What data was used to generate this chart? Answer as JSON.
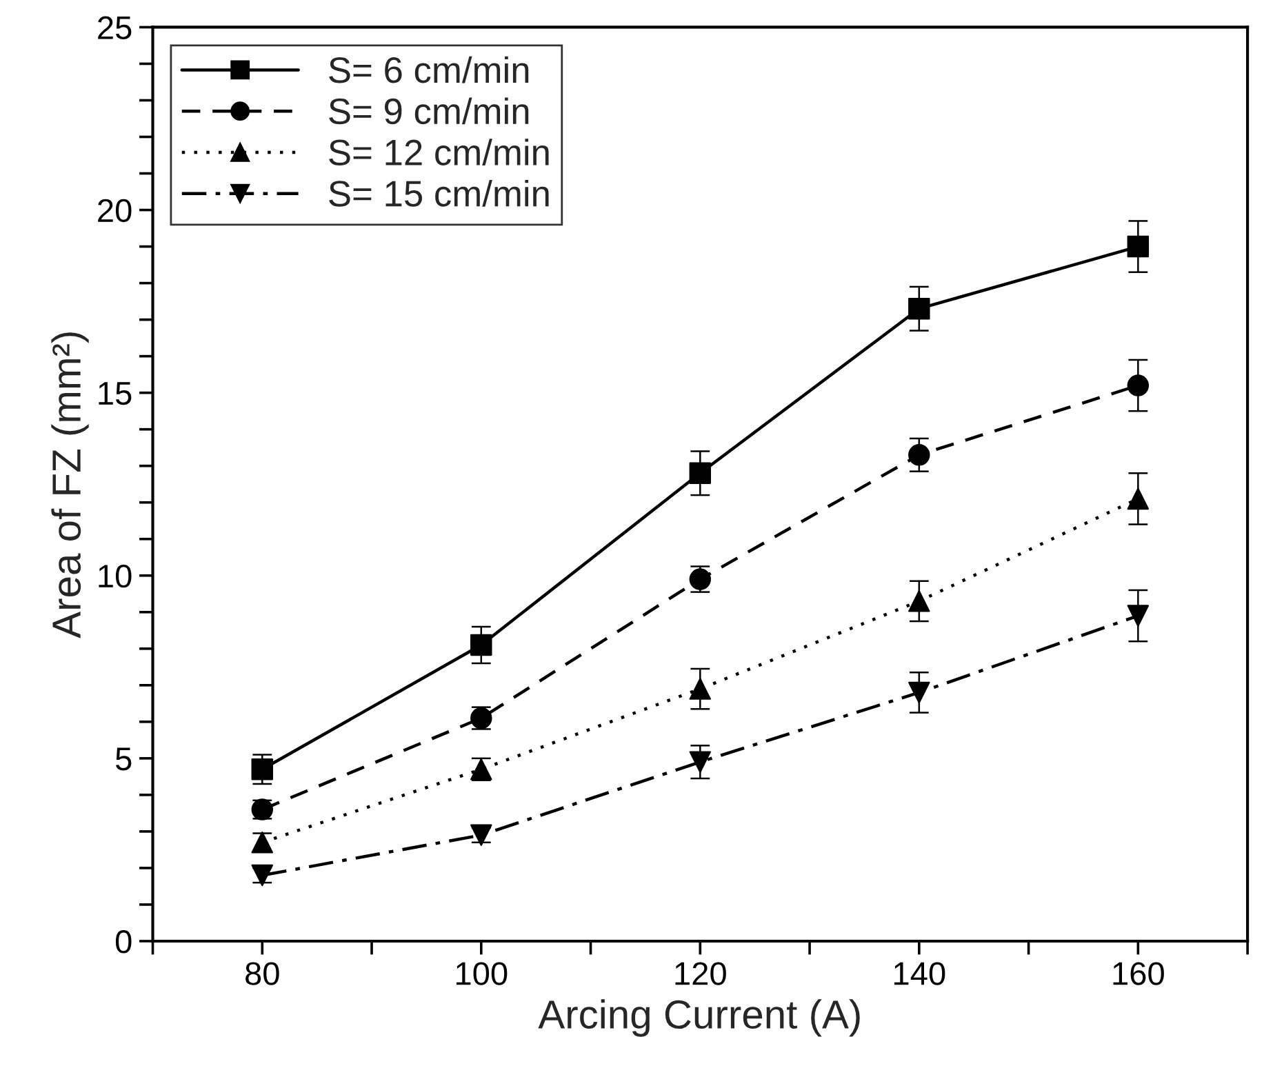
{
  "chart_data": {
    "type": "line",
    "xlabel": "Arcing Current (A)",
    "ylabel": "Area of FZ (mm²)",
    "x": [
      80,
      100,
      120,
      140,
      160
    ],
    "xlim": [
      70,
      170
    ],
    "xticks": [
      {
        "value": 70,
        "label": null
      },
      80,
      {
        "value": 90,
        "label": null
      },
      100,
      {
        "value": 110,
        "label": null
      },
      120,
      {
        "value": 130,
        "label": null
      },
      140,
      {
        "value": 150,
        "label": null
      },
      160,
      {
        "value": 170,
        "label": null
      }
    ],
    "ylim": [
      0,
      25
    ],
    "yticks": [
      0,
      {
        "value": 1,
        "label": null
      },
      {
        "value": 2,
        "label": null
      },
      {
        "value": 3,
        "label": null
      },
      {
        "value": 4,
        "label": null
      },
      5,
      {
        "value": 6,
        "label": null
      },
      {
        "value": 7,
        "label": null
      },
      {
        "value": 8,
        "label": null
      },
      {
        "value": 9,
        "label": null
      },
      10,
      {
        "value": 11,
        "label": null
      },
      {
        "value": 12,
        "label": null
      },
      {
        "value": 13,
        "label": null
      },
      {
        "value": 14,
        "label": null
      },
      15,
      {
        "value": 16,
        "label": null
      },
      {
        "value": 17,
        "label": null
      },
      {
        "value": 18,
        "label": null
      },
      {
        "value": 19,
        "label": null
      },
      20,
      {
        "value": 21,
        "label": null
      },
      {
        "value": 22,
        "label": null
      },
      {
        "value": 23,
        "label": null
      },
      {
        "value": 24,
        "label": null
      },
      25
    ],
    "grid": false,
    "legend": "top left",
    "series": [
      {
        "name": "S= 6 cm/min",
        "color": "#000000",
        "marker": "square",
        "line_style": "solid",
        "values": [
          4.7,
          8.1,
          12.8,
          17.3,
          19.0
        ],
        "errors": [
          0.4,
          0.5,
          0.6,
          0.6,
          0.7
        ]
      },
      {
        "name": "S= 9 cm/min",
        "color": "#000000",
        "marker": "circle",
        "line_style": "dashed",
        "values": [
          3.6,
          6.1,
          9.9,
          13.3,
          15.2
        ],
        "errors": [
          0.25,
          0.3,
          0.35,
          0.45,
          0.7
        ]
      },
      {
        "name": "S= 12 cm/min",
        "color": "#000000",
        "marker": "triangle",
        "line_style": "dotted",
        "values": [
          2.7,
          4.7,
          6.9,
          9.3,
          12.1
        ],
        "errors": [
          0.25,
          0.3,
          0.55,
          0.55,
          0.7
        ]
      },
      {
        "name": "S= 15 cm/min",
        "color": "#000000",
        "marker": "triangle_down",
        "line_style": "dashdot",
        "values": [
          1.8,
          2.9,
          4.9,
          6.8,
          8.9
        ],
        "errors": [
          0.2,
          0.2,
          0.45,
          0.55,
          0.7
        ]
      }
    ]
  }
}
